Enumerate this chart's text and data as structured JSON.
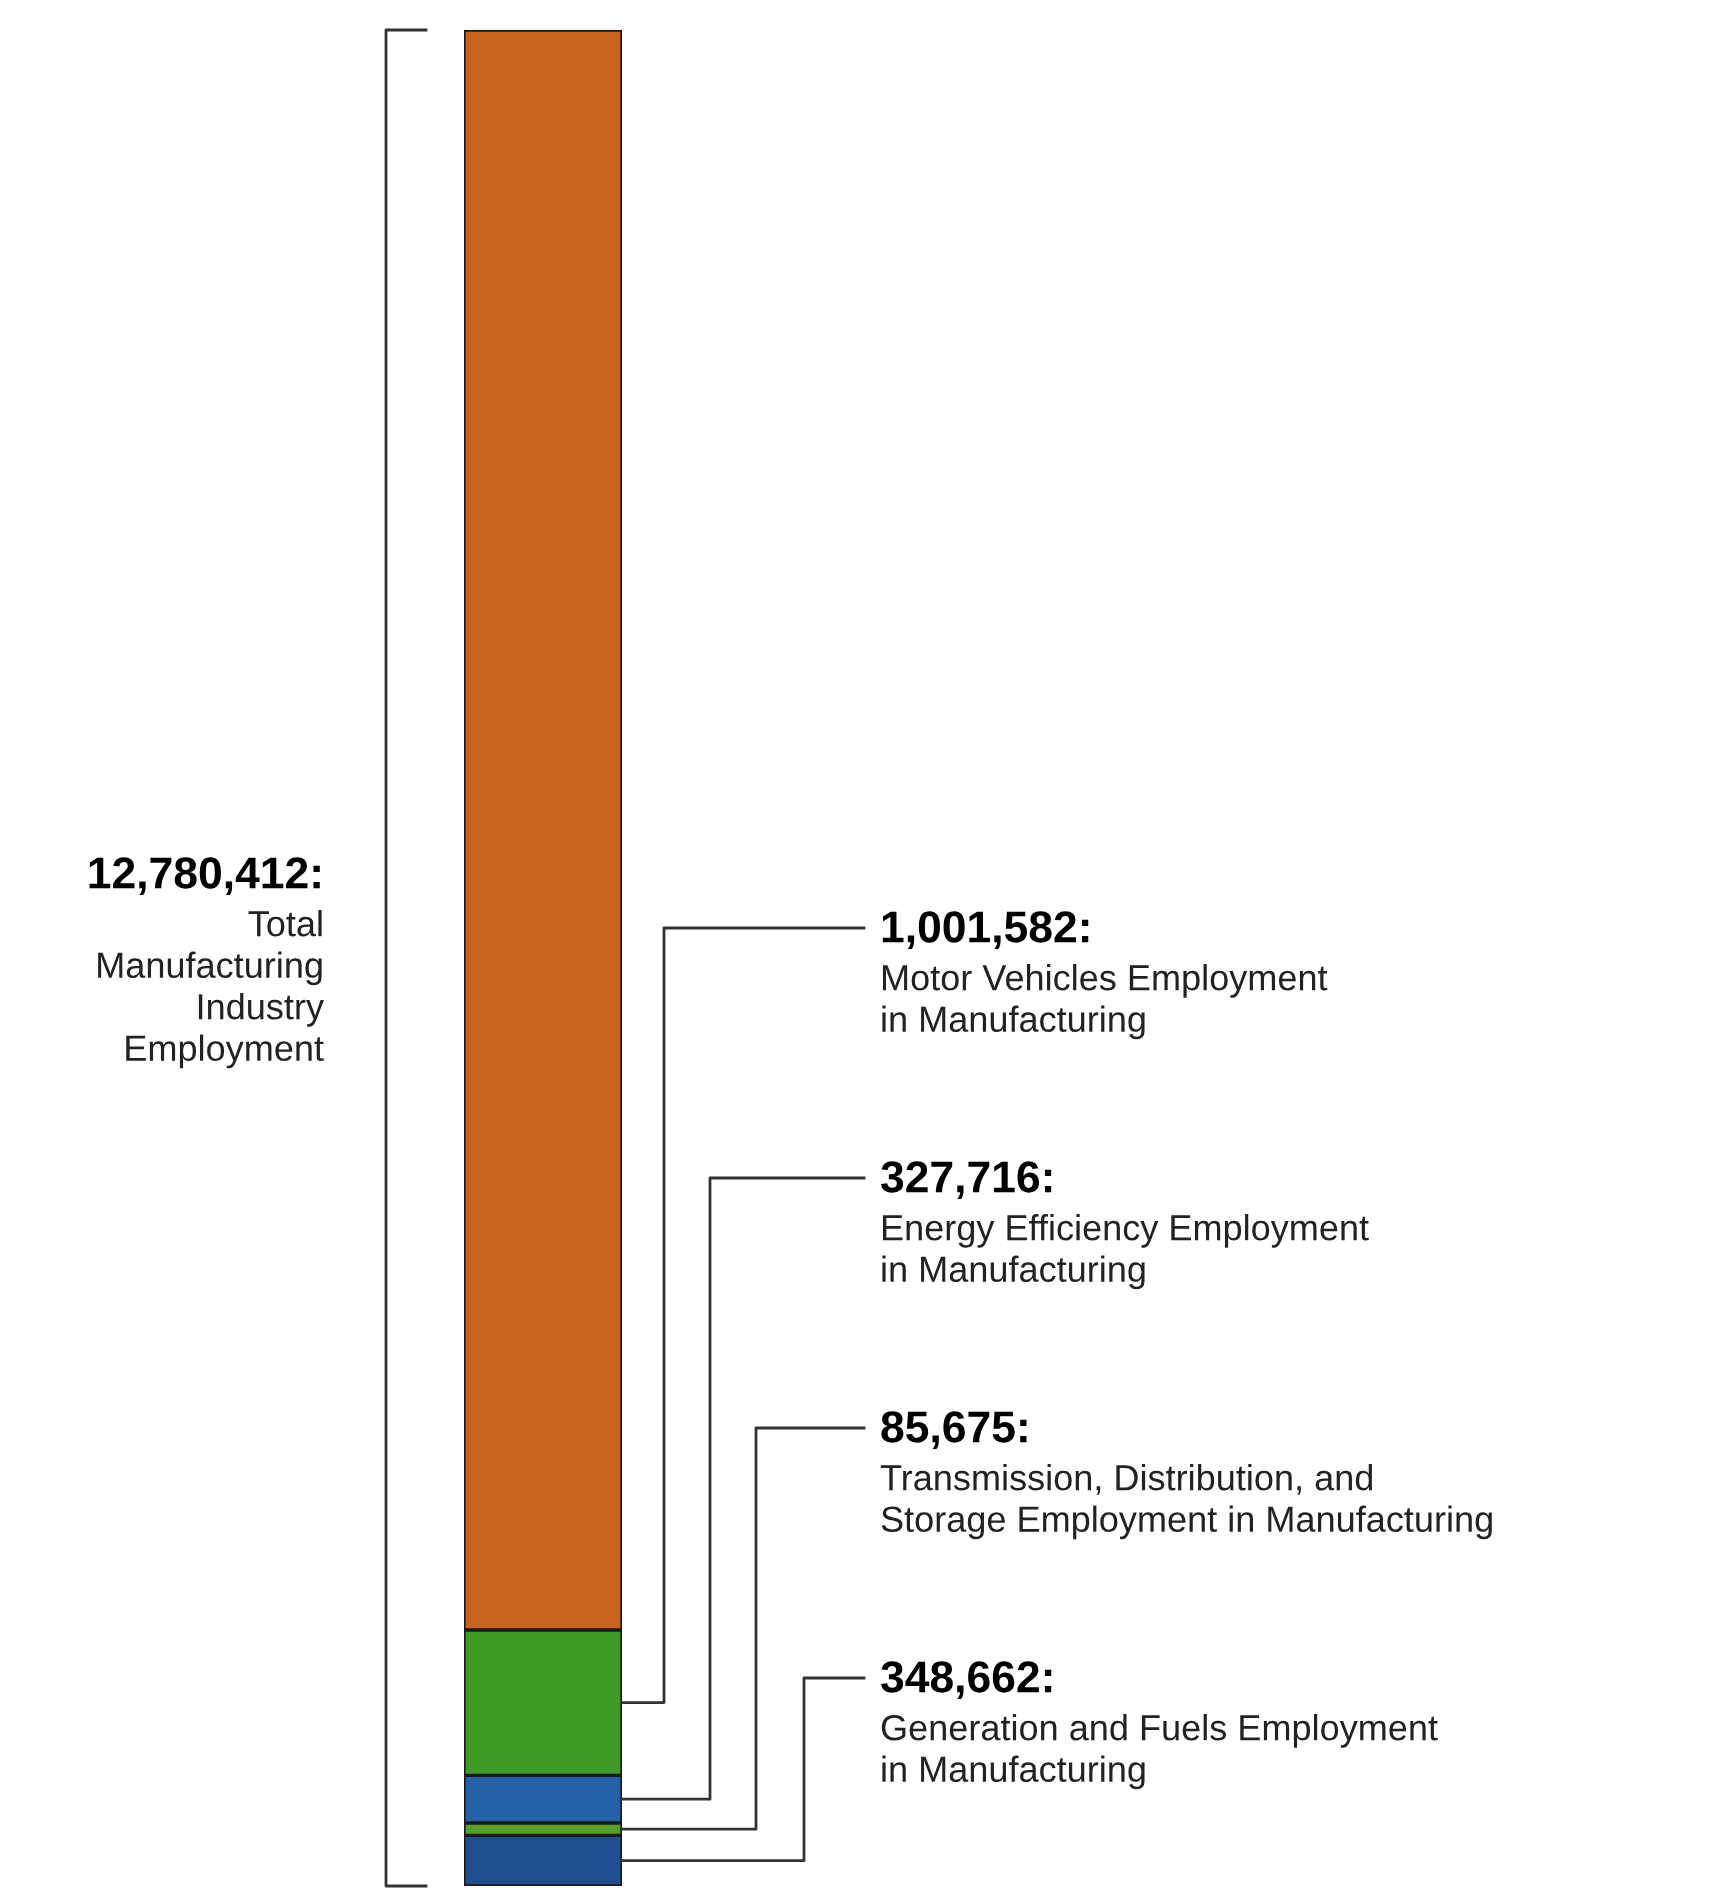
{
  "chart_data": {
    "type": "bar",
    "stacked": true,
    "categories": [
      null
    ],
    "series": [
      {
        "name": "Generation and Fuels Employment\nin Manufacturing",
        "color": "#1f4f8f",
        "values": [
          348662
        ],
        "value_labels": [
          "348,662:"
        ]
      },
      {
        "name": "Transmission, Distribution, and\nStorage Employment in Manufacturing",
        "color": "#5aa02c",
        "values": [
          85675
        ],
        "value_labels": [
          "85,675:"
        ]
      },
      {
        "name": "Energy Efficiency Employment\nin Manufacturing",
        "color": "#2461a8",
        "values": [
          327716
        ],
        "value_labels": [
          "327,716:"
        ]
      },
      {
        "name": "Motor Vehicles Employment\nin Manufacturing",
        "color": "#3f9a28",
        "values": [
          1001582
        ],
        "value_labels": [
          "1,001,582:"
        ]
      },
      {
        "color": "#c8621f",
        "values": [
          11016777
        ]
      }
    ],
    "annotations": [
      "12,780,412:",
      "Total\nManufacturing\nIndustry\nEmployment"
    ],
    "legend": false,
    "tick_labels": false
  }
}
